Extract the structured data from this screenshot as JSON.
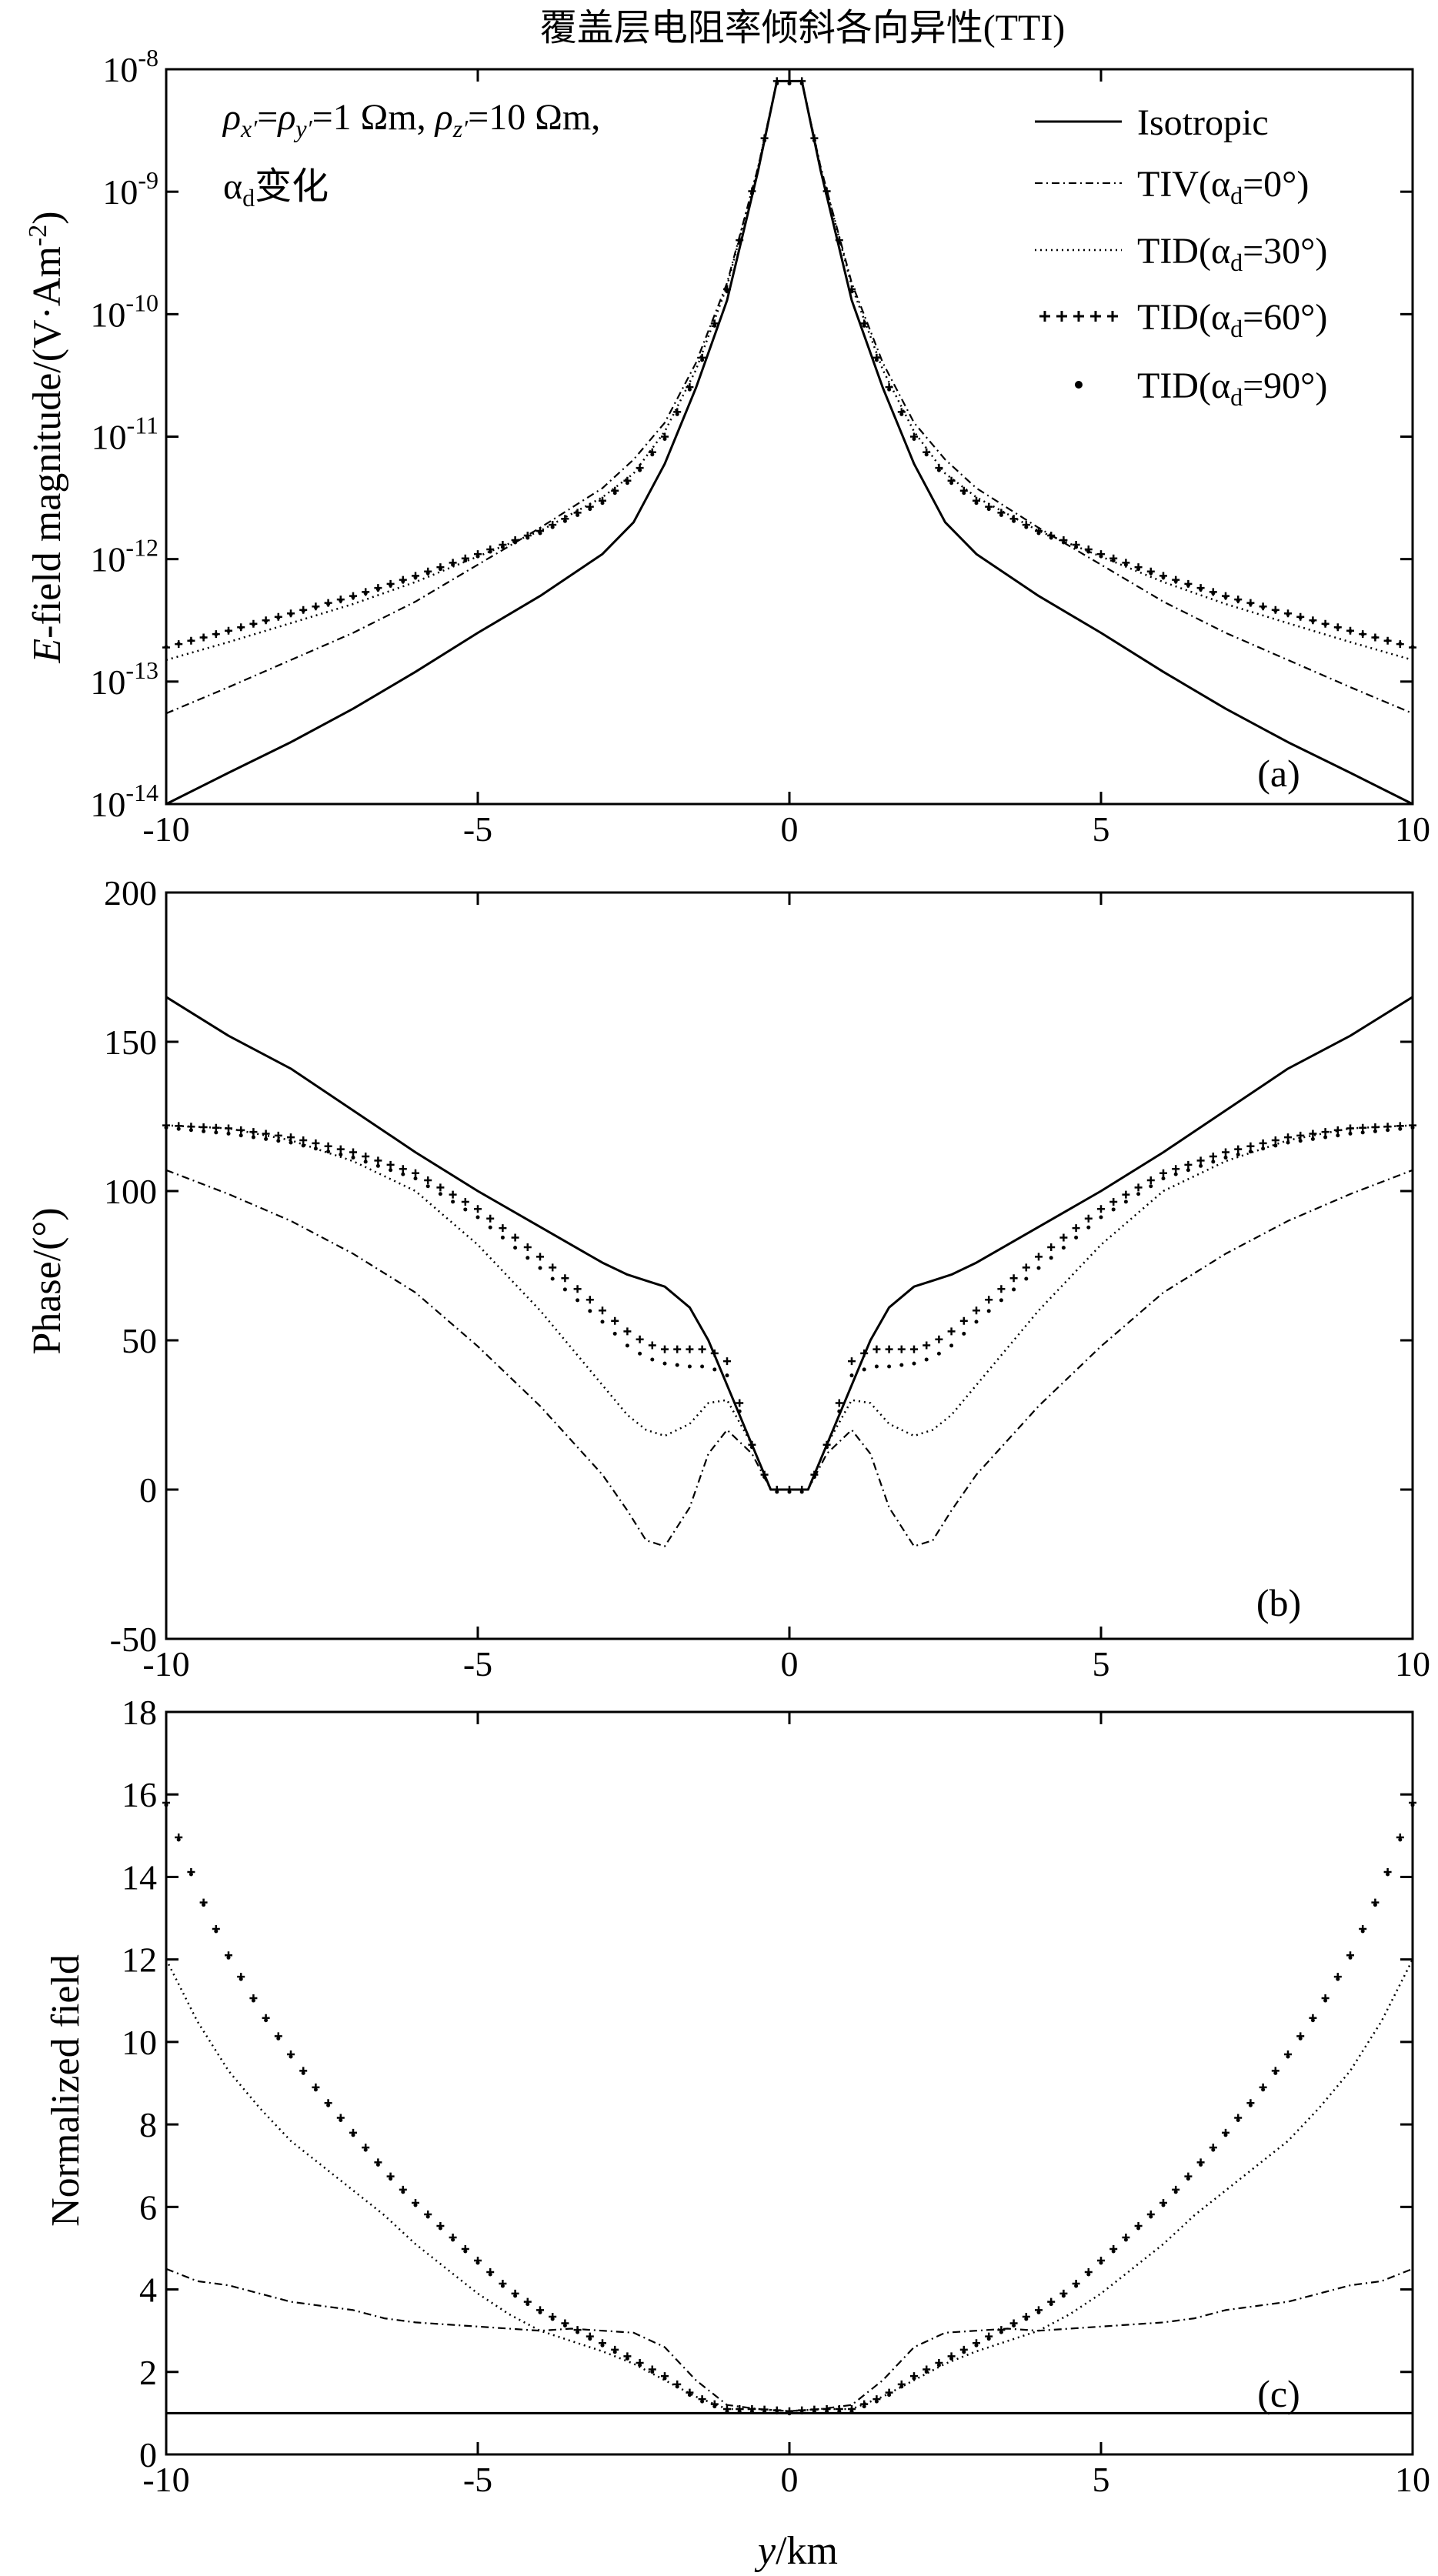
{
  "title": "覆盖层电阻率倾斜各向异性(TTI)",
  "annotation": {
    "rho_x": "ρx′",
    "rho_y": "ρy′",
    "rho_z": "ρz′",
    "line1_mid": "=1 Ωm, ",
    "line1_end": "=10 Ωm,",
    "eq": "=",
    "alpha": "α",
    "alpha_sub": "d",
    "line2_text": "变化"
  },
  "legend": [
    {
      "label": "Isotropic",
      "style": "solid"
    },
    {
      "label": "TIV(αd=0°)",
      "style": "dashdot"
    },
    {
      "label": "TID(αd=30°)",
      "style": "dotted"
    },
    {
      "label": "TID(αd=60°)",
      "style": "plus"
    },
    {
      "label": "TID(αd=90°)",
      "style": "dot"
    }
  ],
  "x_axis": {
    "label_var": "y",
    "label_unit": "/km",
    "min": -10,
    "max": 10,
    "ticks": [
      -10,
      -5,
      0,
      5,
      10
    ],
    "tick_labels": [
      "-10",
      "-5",
      "0",
      "5",
      "10"
    ]
  },
  "panels": [
    {
      "tag": "(a)",
      "ylabel": "E-field magnitude/(V·Am⁻²)",
      "ylabel_var": "E",
      "ylabel_rest": "-field magnitude/(V·Am",
      "ylabel_sup": "-2",
      "ylabel_close": ")",
      "scale": "log",
      "ylim": [
        1e-14,
        1e-08
      ],
      "tick_exponents": [
        -8,
        -9,
        -10,
        -11,
        -12,
        -13,
        -14
      ]
    },
    {
      "tag": "(b)",
      "ylabel": "Phase/(°)",
      "scale": "linear",
      "ylim": [
        -50,
        200
      ],
      "ticks": [
        200,
        150,
        100,
        50,
        0,
        -50
      ],
      "tick_labels": [
        "200",
        "150",
        "100",
        "50",
        "0",
        "-50"
      ]
    },
    {
      "tag": "(c)",
      "ylabel": "Normalized field",
      "scale": "linear",
      "ylim": [
        0,
        18
      ],
      "ticks": [
        18,
        16,
        14,
        12,
        10,
        8,
        6,
        4,
        2,
        0
      ],
      "tick_labels": [
        "18",
        "16",
        "14",
        "12",
        "10",
        "8",
        "6",
        "4",
        "2",
        "0"
      ]
    }
  ],
  "chart_data": [
    {
      "type": "line",
      "title": "覆盖层电阻率倾斜各向异性(TTI)",
      "xlabel": "y/km",
      "ylabel": "E-field magnitude/(V·Am-2)",
      "yscale": "log",
      "xlim": [
        -10,
        10
      ],
      "ylim": [
        1e-14,
        1e-08
      ],
      "x": [
        0,
        0.2,
        0.5,
        1,
        1.5,
        2,
        2.5,
        3,
        4,
        5,
        6,
        7,
        8,
        9,
        10
      ],
      "symmetric_about_zero": true,
      "series": [
        {
          "name": "Isotropic",
          "values": [
            8e-09,
            8e-09,
            1.5e-09,
            1.3e-10,
            2.5e-11,
            6e-12,
            2e-12,
            1.1e-12,
            5e-13,
            2.5e-13,
            1.2e-13,
            6e-14,
            3.2e-14,
            1.8e-14,
            1e-14
          ]
        },
        {
          "name": "TIV(αd=0°)",
          "values": [
            8e-09,
            8e-09,
            1.6e-09,
            1.8e-10,
            4e-11,
            1.3e-11,
            6.5e-12,
            3.8e-12,
            1.8e-12,
            9e-13,
            4.5e-13,
            2.5e-13,
            1.5e-13,
            9e-14,
            5.5e-14
          ]
        },
        {
          "name": "TID(αd=30°)",
          "values": [
            8e-09,
            8e-09,
            1.6e-09,
            1.7e-10,
            3.5e-11,
            1.1e-11,
            5e-12,
            3.2e-12,
            1.7e-12,
            1.05e-12,
            6.5e-13,
            4.3e-13,
            3e-13,
            2.1e-13,
            1.5e-13
          ]
        },
        {
          "name": "TID(αd=60°)",
          "values": [
            8e-09,
            8e-09,
            1.6e-09,
            1.6e-10,
            3.2e-11,
            1e-11,
            4.8e-12,
            3e-12,
            1.7e-12,
            1.1e-12,
            7.3e-13,
            5e-13,
            3.6e-13,
            2.6e-13,
            1.9e-13
          ]
        },
        {
          "name": "TID(αd=90°)",
          "values": [
            8e-09,
            8e-09,
            1.6e-09,
            1.6e-10,
            3.2e-11,
            1e-11,
            4.8e-12,
            3e-12,
            1.7e-12,
            1.1e-12,
            7.4e-13,
            5.1e-13,
            3.7e-13,
            2.7e-13,
            2e-13
          ]
        }
      ]
    },
    {
      "type": "line",
      "xlabel": "y/km",
      "ylabel": "Phase/(°)",
      "xlim": [
        -10,
        10
      ],
      "ylim": [
        -50,
        200
      ],
      "x": [
        0,
        0.3,
        0.6,
        1,
        1.3,
        1.6,
        2,
        2.3,
        2.6,
        3,
        4,
        5,
        6,
        7,
        8,
        9,
        10
      ],
      "symmetric_about_zero": true,
      "series": [
        {
          "name": "Isotropic",
          "values": [
            0,
            0,
            15,
            35,
            50,
            61,
            68,
            70,
            72,
            76,
            88,
            100,
            113,
            127,
            141,
            152,
            165
          ]
        },
        {
          "name": "TIV(αd=0°)",
          "values": [
            0,
            0,
            12,
            20,
            12,
            -6,
            -19,
            -17,
            -7,
            5,
            28,
            48,
            66,
            79,
            90,
            99,
            107
          ]
        },
        {
          "name": "TID(αd=30°)",
          "values": [
            0,
            0,
            15,
            30,
            29,
            22,
            18,
            20,
            25,
            35,
            60,
            82,
            100,
            110,
            117,
            121,
            122
          ]
        },
        {
          "name": "TID(αd=60°)",
          "values": [
            0,
            0,
            15,
            43,
            47,
            47,
            47,
            49,
            53,
            60,
            78,
            94,
            106,
            113,
            118,
            121,
            122
          ]
        },
        {
          "name": "TID(αd=90°)",
          "values": [
            0,
            0,
            15,
            39,
            42,
            42,
            43,
            45,
            49,
            57,
            75,
            92,
            105,
            112,
            117,
            120,
            122
          ]
        }
      ]
    },
    {
      "type": "line",
      "xlabel": "y/km",
      "ylabel": "Normalized field",
      "xlim": [
        -10,
        10
      ],
      "ylim": [
        0,
        18
      ],
      "x": [
        0,
        0.5,
        1,
        1.5,
        2,
        2.5,
        3,
        3.5,
        4,
        4.5,
        5,
        5.5,
        6,
        6.5,
        7,
        7.5,
        8,
        8.5,
        9,
        9.5,
        10
      ],
      "symmetric_about_zero": true,
      "series": [
        {
          "name": "Isotropic",
          "values": [
            1,
            1,
            1,
            1,
            1,
            1,
            1,
            1,
            1,
            1,
            1,
            1,
            1,
            1,
            1,
            1,
            1,
            1,
            1,
            1,
            1
          ]
        },
        {
          "name": "TIV(αd=0°)",
          "values": [
            1.05,
            1.1,
            1.2,
            1.8,
            2.6,
            2.95,
            3.0,
            3.05,
            3.0,
            3.05,
            3.1,
            3.15,
            3.2,
            3.3,
            3.5,
            3.6,
            3.7,
            3.9,
            4.1,
            4.2,
            4.5
          ]
        },
        {
          "name": "TID(αd=30°)",
          "values": [
            1.05,
            1.1,
            1.1,
            1.4,
            1.8,
            2.2,
            2.5,
            2.75,
            3.0,
            3.4,
            3.9,
            4.5,
            5.1,
            5.8,
            6.4,
            7.0,
            7.6,
            8.4,
            9.3,
            10.5,
            12.0
          ]
        },
        {
          "name": "TID(αd=60°)",
          "values": [
            1.05,
            1.1,
            1.1,
            1.4,
            1.9,
            2.3,
            2.7,
            3.1,
            3.5,
            4.0,
            4.7,
            5.4,
            6.1,
            6.9,
            7.8,
            8.7,
            9.7,
            10.8,
            12.1,
            13.7,
            15.8
          ]
        },
        {
          "name": "TID(αd=90°)",
          "values": [
            1.05,
            1.1,
            1.1,
            1.4,
            1.9,
            2.3,
            2.7,
            3.1,
            3.5,
            4.0,
            4.7,
            5.4,
            6.1,
            6.9,
            7.8,
            8.7,
            9.7,
            10.8,
            12.1,
            13.7,
            15.8
          ]
        }
      ]
    }
  ]
}
